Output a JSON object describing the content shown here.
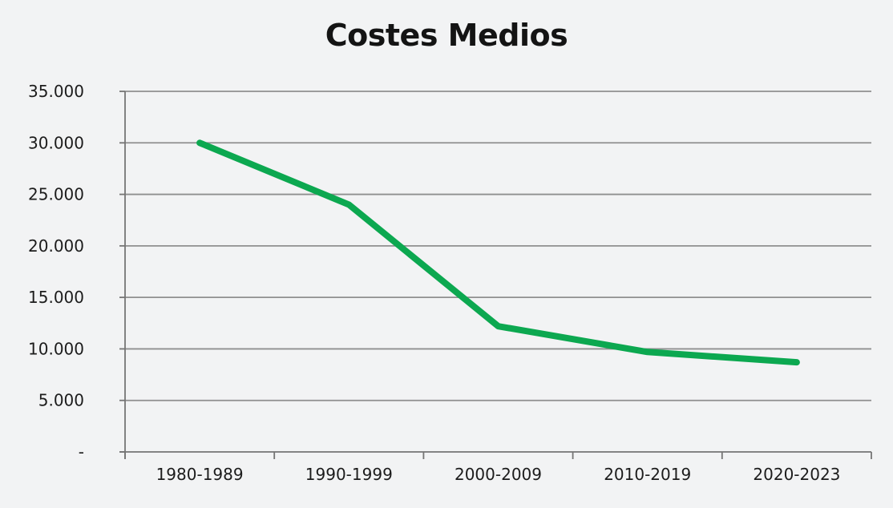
{
  "chart_data": {
    "type": "line",
    "title": "Costes Medios",
    "categories": [
      "1980-1989",
      "1990-1999",
      "2000-2009",
      "2010-2019",
      "2020-2023"
    ],
    "series": [
      {
        "name": "Costes Medios",
        "values": [
          30000,
          24000,
          12200,
          9700,
          8700
        ]
      }
    ],
    "xlabel": "",
    "ylabel": "",
    "ylim": [
      0,
      35000
    ],
    "ytick_step": 5000,
    "ytick_labels": [
      "-",
      "5.000",
      "10.000",
      "15.000",
      "20.000",
      "25.000",
      "30.000",
      "35.000"
    ],
    "grid": "horizontal",
    "legend": "none",
    "colors": {
      "line": "#0ca850",
      "background": "#f2f3f4",
      "gridline": "#8f8f8f",
      "axis": "#757575",
      "text": "#1c1c1c",
      "title": "#141414"
    }
  }
}
